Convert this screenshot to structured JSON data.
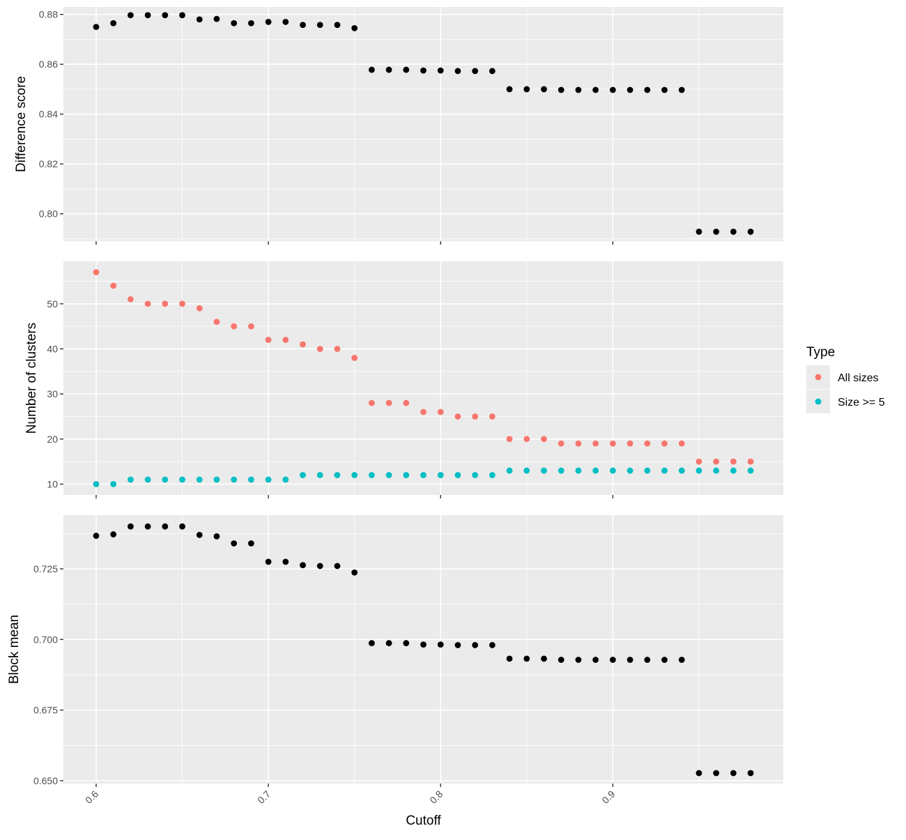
{
  "chart_data": {
    "type": "scatter",
    "facets": 3,
    "x": [
      0.6,
      0.61,
      0.62,
      0.63,
      0.64,
      0.65,
      0.66,
      0.67,
      0.68,
      0.69,
      0.7,
      0.71,
      0.72,
      0.73,
      0.74,
      0.75,
      0.76,
      0.77,
      0.78,
      0.79,
      0.8,
      0.81,
      0.82,
      0.83,
      0.84,
      0.85,
      0.86,
      0.87,
      0.88,
      0.89,
      0.9,
      0.91,
      0.92,
      0.93,
      0.94,
      0.95,
      0.96,
      0.97,
      0.98
    ],
    "xlabel": "Cutoff",
    "xlim": [
      0.581,
      0.999
    ],
    "x_ticks": [
      0.6,
      0.7,
      0.8,
      0.9
    ],
    "x_tick_labels": [
      "0.6",
      "0.7",
      "0.8",
      "0.9"
    ],
    "x_tick_label_rotation_deg": -45,
    "grid": true,
    "panels": [
      {
        "ylabel": "Difference score",
        "ylim": [
          0.789,
          0.883
        ],
        "y_ticks": [
          0.8,
          0.82,
          0.84,
          0.86,
          0.88
        ],
        "y_tick_labels": [
          "0.80",
          "0.82",
          "0.84",
          "0.86",
          "0.88"
        ],
        "show_x_labels": false,
        "series": [
          {
            "color": "#000000",
            "values": [
              0.875,
              0.8765,
              0.8797,
              0.8797,
              0.8797,
              0.8797,
              0.878,
              0.8782,
              0.8765,
              0.8765,
              0.877,
              0.877,
              0.8758,
              0.8758,
              0.8758,
              0.8745,
              0.8578,
              0.8578,
              0.8578,
              0.8575,
              0.8575,
              0.8573,
              0.8573,
              0.8573,
              0.85,
              0.85,
              0.85,
              0.8497,
              0.8497,
              0.8497,
              0.8497,
              0.8497,
              0.8497,
              0.8497,
              0.8497,
              0.7928,
              0.7928,
              0.7928,
              0.7928
            ]
          }
        ]
      },
      {
        "ylabel": "Number of clusters",
        "ylim": [
          7.6,
          59.4
        ],
        "y_ticks": [
          10,
          20,
          30,
          40,
          50
        ],
        "y_tick_labels": [
          "10",
          "20",
          "30",
          "40",
          "50"
        ],
        "show_x_labels": false,
        "series": [
          {
            "name": "All sizes",
            "color": "#F8766D",
            "values": [
              57,
              54,
              51,
              50,
              50,
              50,
              49,
              46,
              45,
              45,
              42,
              42,
              41,
              40,
              40,
              38,
              28,
              28,
              28,
              26,
              26,
              25,
              25,
              25,
              20,
              20,
              20,
              19,
              19,
              19,
              19,
              19,
              19,
              19,
              19,
              15,
              15,
              15,
              15
            ]
          },
          {
            "name": "Size >= 5",
            "color": "#00BFC4",
            "values": [
              10,
              10,
              11,
              11,
              11,
              11,
              11,
              11,
              11,
              11,
              11,
              11,
              12,
              12,
              12,
              12,
              12,
              12,
              12,
              12,
              12,
              12,
              12,
              12,
              13,
              13,
              13,
              13,
              13,
              13,
              13,
              13,
              13,
              13,
              13,
              13,
              13,
              13,
              13
            ]
          }
        ]
      },
      {
        "ylabel": "Block mean",
        "ylim": [
          0.649,
          0.744
        ],
        "y_ticks": [
          0.65,
          0.675,
          0.7,
          0.725
        ],
        "y_tick_labels": [
          "0.650",
          "0.675",
          "0.700",
          "0.725"
        ],
        "show_x_labels": true,
        "series": [
          {
            "color": "#000000",
            "values": [
              0.7367,
              0.7372,
              0.74,
              0.74,
              0.74,
              0.74,
              0.737,
              0.7365,
              0.734,
              0.734,
              0.7275,
              0.7275,
              0.7263,
              0.726,
              0.726,
              0.7237,
              0.6987,
              0.6987,
              0.6987,
              0.6982,
              0.6982,
              0.698,
              0.698,
              0.698,
              0.6932,
              0.6932,
              0.6932,
              0.6928,
              0.6928,
              0.6928,
              0.6928,
              0.6928,
              0.6928,
              0.6928,
              0.6928,
              0.6527,
              0.6527,
              0.6527,
              0.6527
            ]
          }
        ]
      }
    ],
    "legend": {
      "title": "Type",
      "position": "right",
      "entries": [
        {
          "label": "All sizes",
          "color": "#F8766D"
        },
        {
          "label": "Size >= 5",
          "color": "#00BFC4"
        }
      ]
    }
  }
}
